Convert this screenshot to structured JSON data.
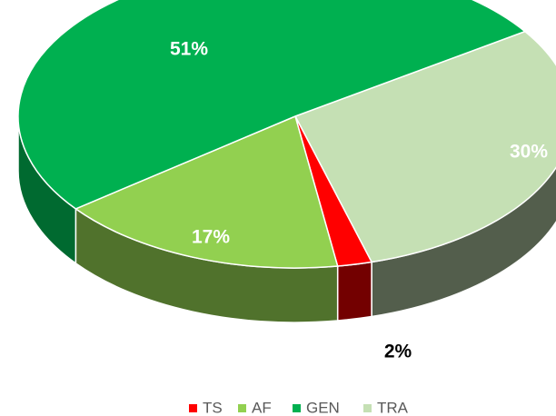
{
  "chart_data": {
    "type": "pie",
    "categories": [
      "TS",
      "AF",
      "GEN",
      "TRA"
    ],
    "values": [
      2,
      17,
      51,
      30
    ],
    "value_labels": [
      "2%",
      "17%",
      "51%",
      "30%"
    ],
    "colors": [
      "#ff0000",
      "#92d050",
      "#00b050",
      "#c5e0b4"
    ],
    "legend": "bottom"
  }
}
